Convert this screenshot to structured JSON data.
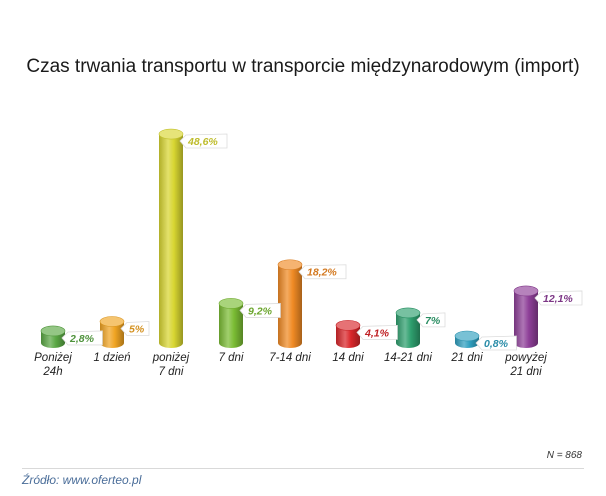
{
  "chart_data": {
    "type": "bar",
    "title": "Czas trwania transportu w transporcie międzynarodowym (import)",
    "categories": [
      [
        "Poniżej",
        "24h"
      ],
      [
        "1 dzień"
      ],
      [
        "poniżej",
        "7 dni"
      ],
      [
        "7 dni"
      ],
      [
        "7-14 dni"
      ],
      [
        "14 dni"
      ],
      [
        "14-21 dni"
      ],
      [
        "21 dni"
      ],
      [
        "powyżej",
        "21 dni"
      ]
    ],
    "values": [
      2.8,
      5,
      48.6,
      9.2,
      18.2,
      4.1,
      7,
      0.8,
      12.1
    ],
    "value_labels": [
      "2,8%",
      "5%",
      "48,6%",
      "9,2%",
      "18,2%",
      "4,1%",
      "7%",
      "0,8%",
      "12,1%"
    ],
    "colors": [
      "#5aa744",
      "#f0a422",
      "#d8d631",
      "#7bbd34",
      "#f08a24",
      "#d9262a",
      "#2e9f6e",
      "#2f9fbf",
      "#8e3f98"
    ],
    "ylim": [
      0,
      50
    ]
  },
  "note": "N = 868",
  "source": "Źródło: www.oferteo.pl"
}
